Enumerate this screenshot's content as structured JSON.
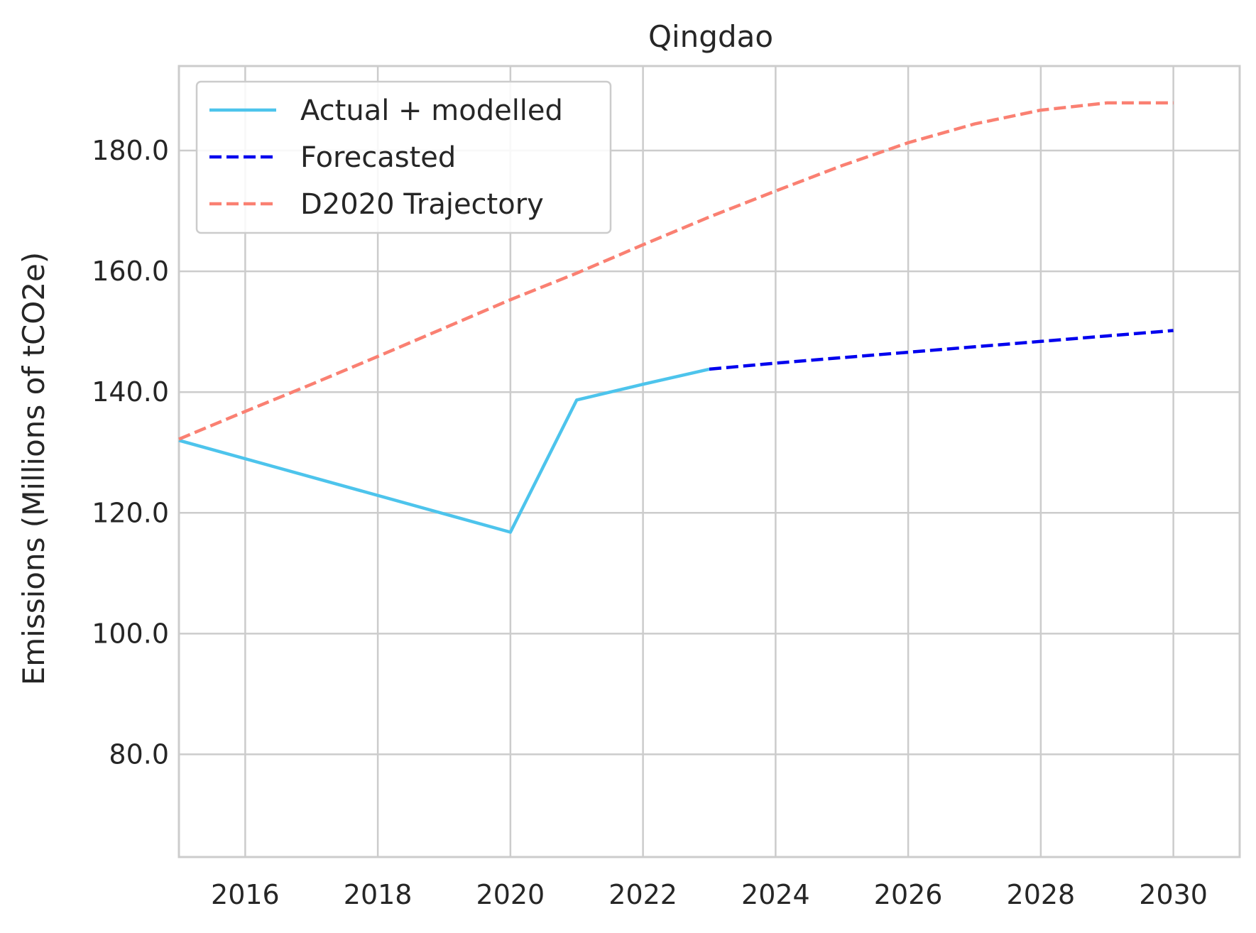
{
  "chart_data": {
    "type": "line",
    "title": "Qingdao",
    "xlabel": "",
    "ylabel": "Emissions (Millions of tCO2e)",
    "xlim": [
      2015,
      2031
    ],
    "ylim": [
      63,
      194
    ],
    "x_ticks": [
      2016,
      2018,
      2020,
      2022,
      2024,
      2026,
      2028,
      2030
    ],
    "x_tick_labels": [
      "2016",
      "2018",
      "2020",
      "2022",
      "2024",
      "2026",
      "2028",
      "2030"
    ],
    "y_ticks": [
      80,
      100,
      120,
      140,
      160,
      180
    ],
    "y_tick_labels": [
      "80.0",
      "100.0",
      "120.0",
      "140.0",
      "160.0",
      "180.0"
    ],
    "grid": true,
    "legend_position": "top-left",
    "series": [
      {
        "name": "Actual + modelled",
        "color": "#4dc4ec",
        "dash": "solid",
        "x": [
          2015,
          2020,
          2021,
          2022,
          2023
        ],
        "y": [
          132.0,
          116.8,
          138.7,
          141.3,
          143.8
        ]
      },
      {
        "name": "Forecasted",
        "color": "#0000ee",
        "dash": "dashed",
        "x": [
          2023,
          2024,
          2025,
          2026,
          2027,
          2028,
          2029,
          2030
        ],
        "y": [
          143.8,
          144.8,
          145.7,
          146.6,
          147.5,
          148.4,
          149.3,
          150.2
        ]
      },
      {
        "name": "D2020 Trajectory",
        "color": "#fa8072",
        "dash": "dashed",
        "x": [
          2015,
          2016,
          2017,
          2018,
          2019,
          2020,
          2021,
          2022,
          2023,
          2024,
          2025,
          2026,
          2027,
          2028,
          2029,
          2030
        ],
        "y": [
          132.2,
          136.8,
          141.3,
          145.9,
          150.6,
          155.3,
          159.7,
          164.4,
          169.0,
          173.3,
          177.5,
          181.3,
          184.4,
          186.7,
          187.9,
          187.9
        ]
      }
    ]
  }
}
